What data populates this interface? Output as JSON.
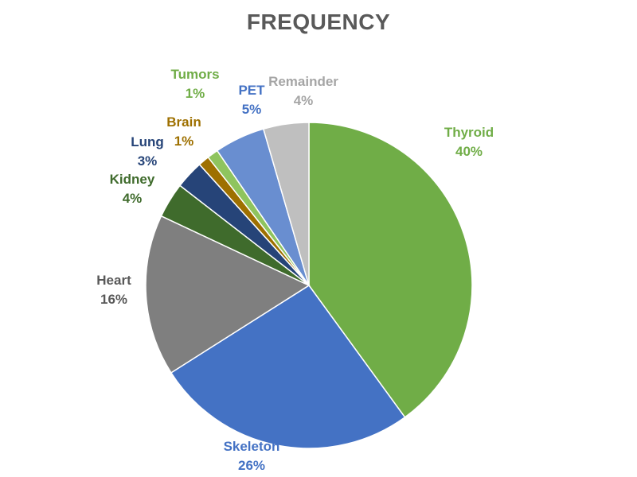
{
  "chart_data": {
    "type": "pie",
    "title": "FREQUENCY",
    "slices": [
      {
        "name": "Thyroid",
        "value": 40,
        "label": "40%",
        "color": "#70AD47"
      },
      {
        "name": "Skeleton",
        "value": 26,
        "label": "26%",
        "color": "#4472C4"
      },
      {
        "name": "Heart",
        "value": 16,
        "label": "16%",
        "color": "#7F7F7F"
      },
      {
        "name": "Kidney",
        "value": 3.5,
        "label": "4%",
        "color": "#3F6B2C"
      },
      {
        "name": "Lung",
        "value": 2.8,
        "label": "3%",
        "color": "#264478"
      },
      {
        "name": "Brain",
        "value": 1.1,
        "label": "1%",
        "color": "#9E7000"
      },
      {
        "name": "Tumors",
        "value": 1.1,
        "label": "1%",
        "color": "#8FC45E"
      },
      {
        "name": "PET",
        "value": 5,
        "label": "5%",
        "color": "#698ED0"
      },
      {
        "name": "Remainder",
        "value": 4.5,
        "label": "4%",
        "color": "#BFBFBF"
      }
    ],
    "label_colors": {
      "Thyroid": "#70AD47",
      "Skeleton": "#4472C4",
      "Heart": "#595959",
      "Kidney": "#3F6B2C",
      "Lung": "#264478",
      "Brain": "#9E7000",
      "Tumors": "#70AD47",
      "PET": "#4472C4",
      "Remainder": "#A5A5A5"
    },
    "start_angle": "12 o'clock, clockwise",
    "legend": "none"
  }
}
